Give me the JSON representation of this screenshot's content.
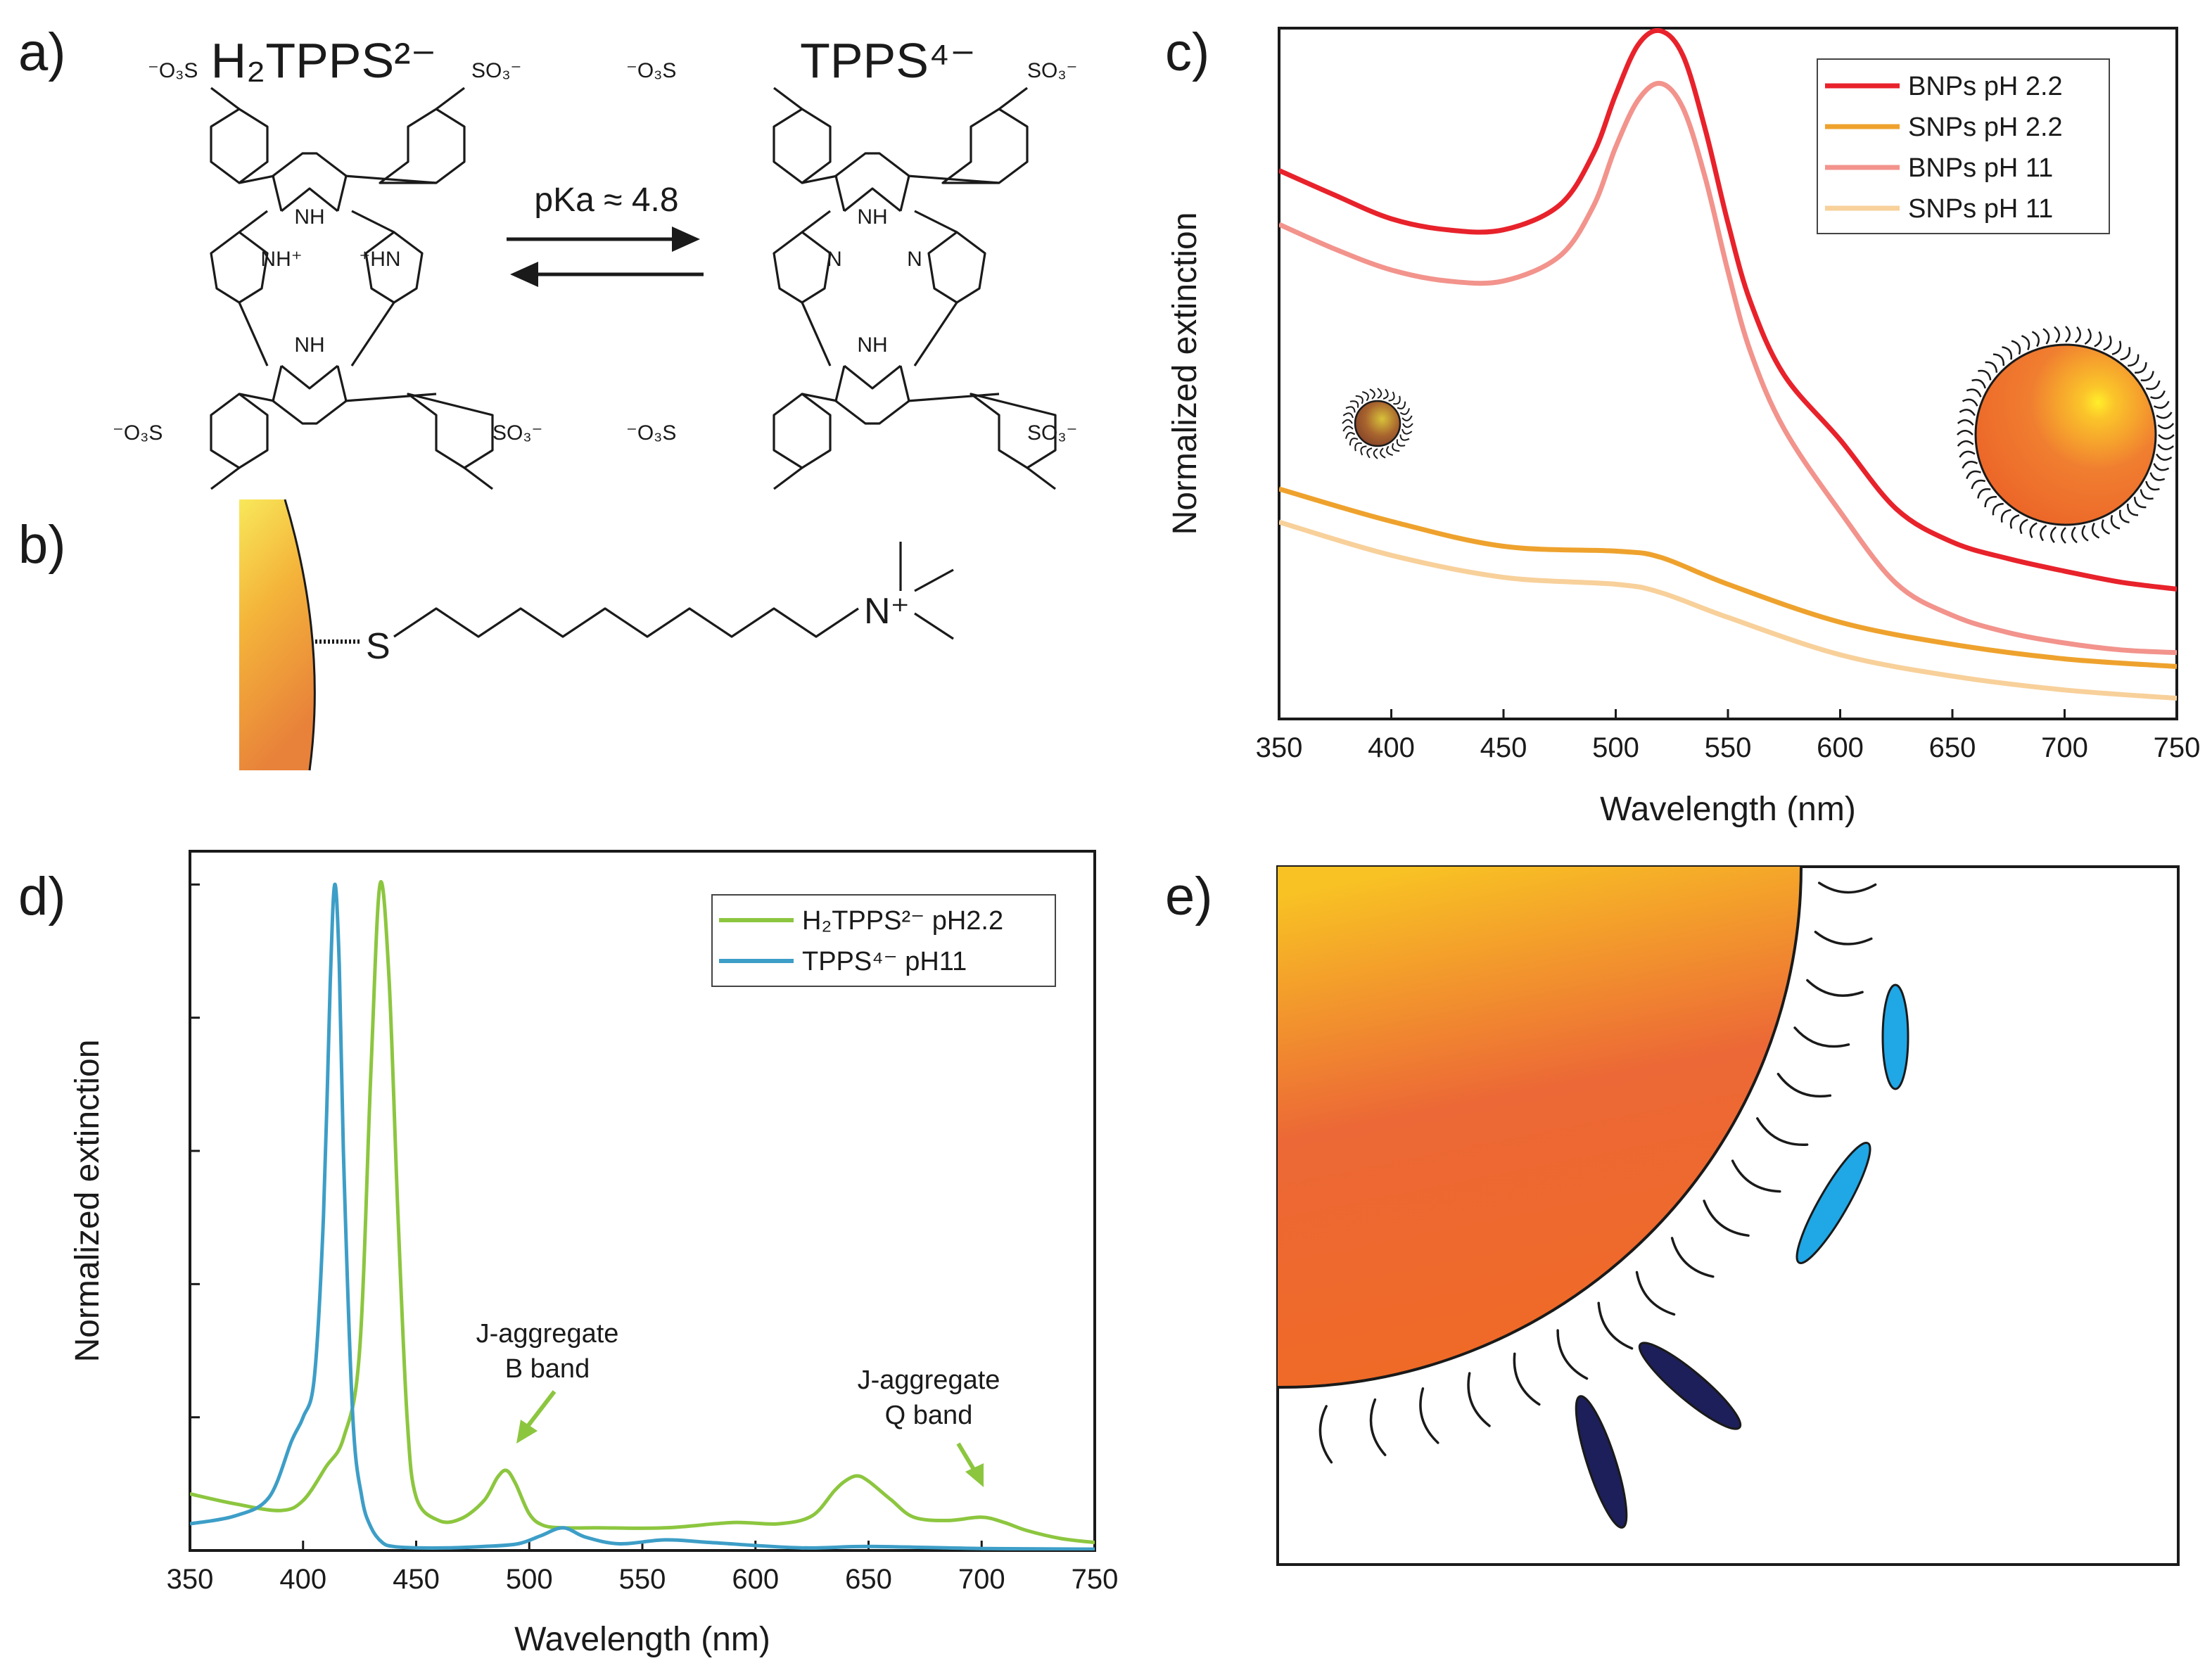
{
  "panels": {
    "a": "a)",
    "b": "b)",
    "c": "c)",
    "d": "d)",
    "e": "e)"
  },
  "panel_a": {
    "left_title": "H₂TPPS²⁻",
    "right_title": "TPPS⁴⁻",
    "equilibrium": "pKa ≈ 4.8",
    "substituent_top_left": "⁻O₃S",
    "substituent_top_right": "SO₃⁻",
    "substituent_bottom_left": "⁻O₃S",
    "substituent_bottom_right": "SO₃⁻",
    "nh_top": "NH",
    "nh_bottom": "NH",
    "nh_plus_left": "NH⁺",
    "nh_plus_right": "⁺HN",
    "n_left": "N",
    "n_right": "N"
  },
  "panel_b": {
    "sulfur": "S",
    "ammonium": "N⁺"
  },
  "chart_data": [
    {
      "id": "c",
      "type": "line",
      "xlabel": "Wavelength (nm)",
      "ylabel": "Normalized extinction",
      "xlim": [
        350,
        750
      ],
      "ylim": [
        0,
        1
      ],
      "xticks": [
        350,
        400,
        450,
        500,
        550,
        600,
        650,
        700,
        750
      ],
      "legend_position": "top-right",
      "series": [
        {
          "name": "BNPs pH 2.2",
          "color": "#e8222b",
          "x": [
            350,
            375,
            400,
            425,
            450,
            475,
            490,
            500,
            510,
            520,
            530,
            540,
            550,
            560,
            575,
            600,
            625,
            650,
            675,
            700,
            725,
            750
          ],
          "y": [
            0.794,
            0.758,
            0.724,
            0.708,
            0.708,
            0.744,
            0.818,
            0.904,
            0.976,
            0.996,
            0.96,
            0.852,
            0.718,
            0.604,
            0.498,
            0.404,
            0.304,
            0.256,
            0.232,
            0.214,
            0.198,
            0.188
          ]
        },
        {
          "name": "SNPs pH 2.2",
          "color": "#eea22d",
          "x": [
            350,
            400,
            450,
            500,
            520,
            550,
            600,
            650,
            700,
            750
          ],
          "y": [
            0.333,
            0.286,
            0.25,
            0.243,
            0.234,
            0.195,
            0.14,
            0.108,
            0.087,
            0.076
          ]
        },
        {
          "name": "BNPs pH 11",
          "color": "#f2938c",
          "x": [
            350,
            375,
            400,
            425,
            450,
            475,
            490,
            500,
            510,
            520,
            530,
            540,
            550,
            560,
            575,
            600,
            625,
            650,
            675,
            700,
            725,
            750
          ],
          "y": [
            0.716,
            0.68,
            0.65,
            0.634,
            0.634,
            0.67,
            0.742,
            0.828,
            0.896,
            0.92,
            0.884,
            0.782,
            0.648,
            0.532,
            0.42,
            0.3,
            0.196,
            0.15,
            0.125,
            0.11,
            0.1,
            0.096
          ]
        },
        {
          "name": "SNPs pH 11",
          "color": "#f8d09a",
          "x": [
            350,
            400,
            450,
            500,
            520,
            550,
            600,
            650,
            700,
            750
          ],
          "y": [
            0.285,
            0.237,
            0.205,
            0.195,
            0.183,
            0.147,
            0.093,
            0.062,
            0.042,
            0.03
          ]
        }
      ]
    },
    {
      "id": "d",
      "type": "line",
      "xlabel": "Wavelength (nm)",
      "ylabel": "Normalized extinction",
      "xlim": [
        350,
        750
      ],
      "ylim": [
        0,
        1.05
      ],
      "xticks": [
        350,
        400,
        450,
        500,
        550,
        600,
        650,
        700,
        750
      ],
      "legend_position": "top-right",
      "series": [
        {
          "name": "H₂TPPS²⁻ pH2.2",
          "color": "#8cc63f",
          "x": [
            350,
            370,
            390,
            400,
            410,
            418,
            425,
            430,
            434,
            438,
            442,
            446,
            450,
            460,
            470,
            480,
            486,
            490,
            494,
            500,
            506,
            515,
            530,
            560,
            590,
            610,
            625,
            635,
            640,
            645,
            650,
            660,
            670,
            685,
            700,
            710,
            720,
            735,
            750
          ],
          "y": [
            0.085,
            0.07,
            0.06,
            0.075,
            0.125,
            0.17,
            0.3,
            0.72,
            1.0,
            0.86,
            0.5,
            0.2,
            0.08,
            0.045,
            0.048,
            0.075,
            0.11,
            0.12,
            0.1,
            0.055,
            0.038,
            0.034,
            0.034,
            0.034,
            0.042,
            0.04,
            0.052,
            0.09,
            0.105,
            0.112,
            0.104,
            0.076,
            0.05,
            0.045,
            0.05,
            0.042,
            0.03,
            0.018,
            0.012
          ]
        },
        {
          "name": "TPPS⁴⁻ pH11",
          "color": "#3d9ec7",
          "x": [
            350,
            370,
            385,
            395,
            400,
            405,
            409,
            412,
            414,
            416,
            418,
            422,
            426,
            430,
            435,
            440,
            450,
            465,
            480,
            495,
            505,
            515,
            525,
            540,
            560,
            580,
            620,
            650,
            700,
            750
          ],
          "y": [
            0.04,
            0.052,
            0.08,
            0.165,
            0.2,
            0.26,
            0.5,
            0.85,
            1.0,
            0.88,
            0.58,
            0.2,
            0.08,
            0.035,
            0.012,
            0.006,
            0.004,
            0.004,
            0.006,
            0.01,
            0.022,
            0.034,
            0.02,
            0.01,
            0.016,
            0.012,
            0.004,
            0.006,
            0.003,
            0.002
          ]
        }
      ],
      "annotations": [
        {
          "text": [
            "J-aggregate",
            "B band"
          ],
          "x": 490,
          "y": 0.17
        },
        {
          "text": [
            "J-aggregate",
            "Q band"
          ],
          "x": 705,
          "y": 0.07
        }
      ]
    }
  ]
}
